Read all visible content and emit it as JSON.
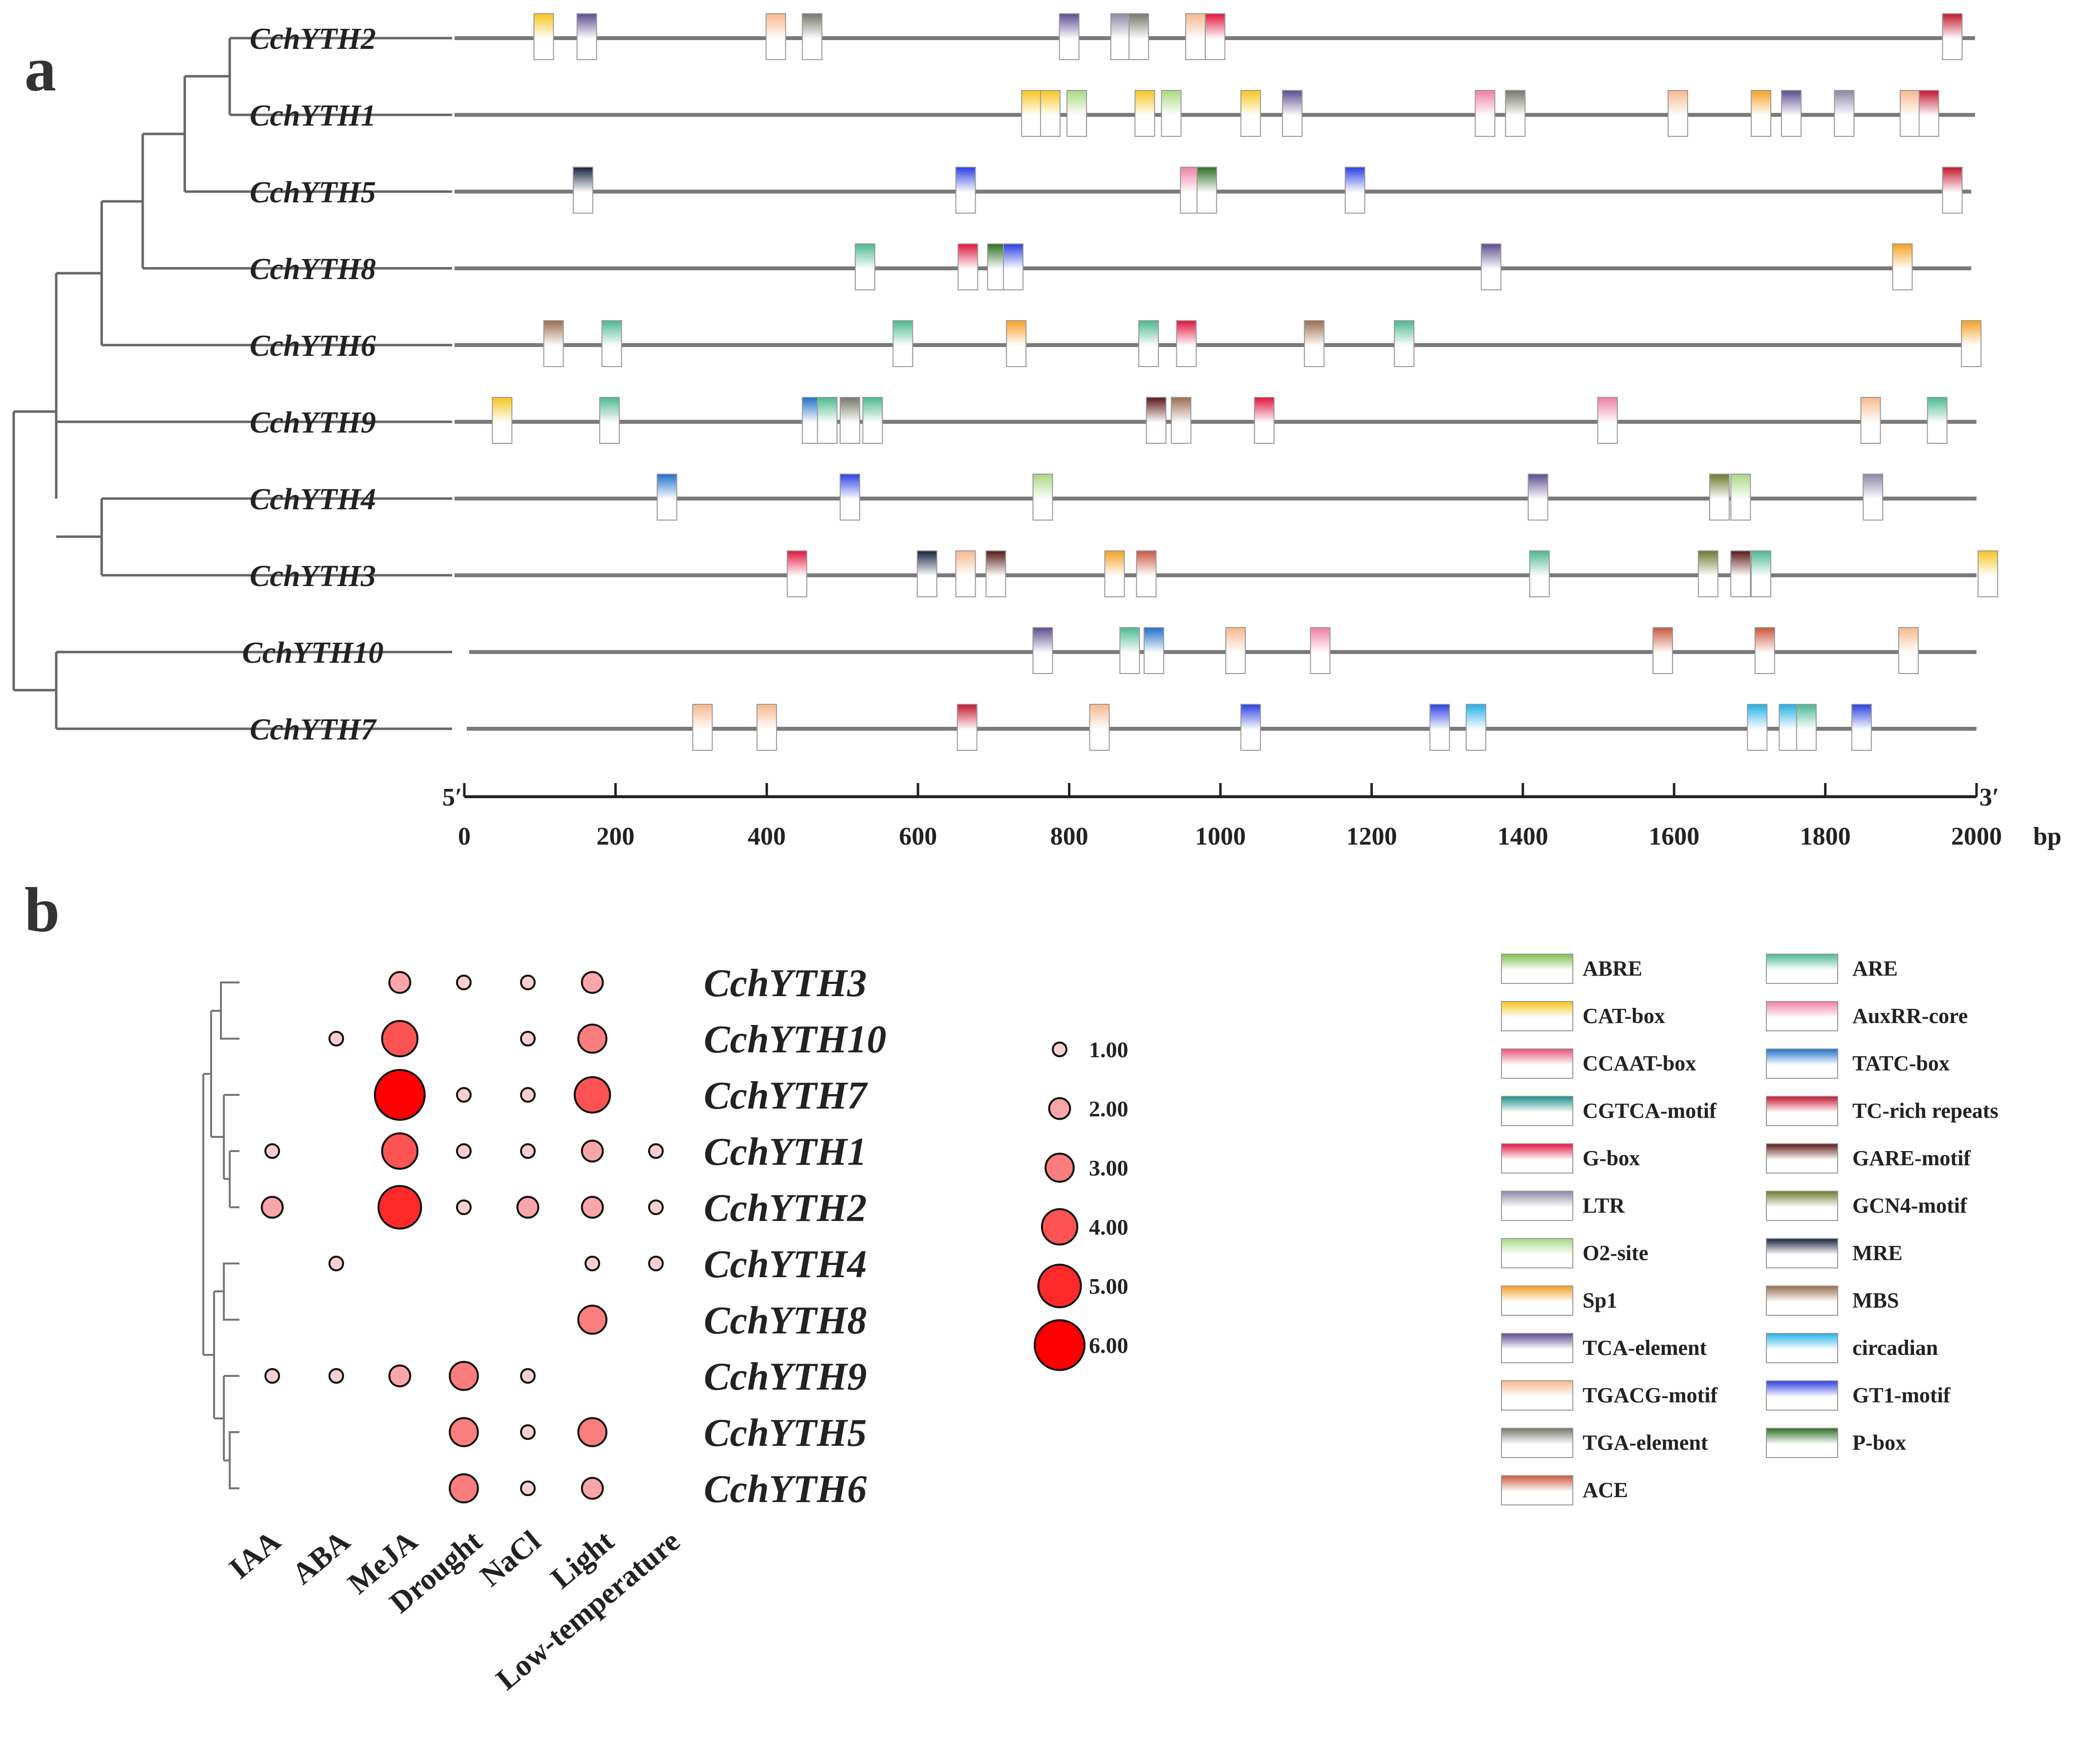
{
  "panels": {
    "a": "a",
    "b": "b"
  },
  "chart_data": [
    {
      "type": "promoter-element-map",
      "genes": [
        "CchYTH2",
        "CchYTH1",
        "CchYTH5",
        "CchYTH8",
        "CchYTH6",
        "CchYTH9",
        "CchYTH4",
        "CchYTH3",
        "CchYTH10",
        "CchYTH7"
      ],
      "axis": {
        "start_label": "5′",
        "end_label": "3′",
        "unit": "bp",
        "range": [
          0,
          2000
        ],
        "ticks": [
          0,
          200,
          400,
          600,
          800,
          1000,
          1200,
          1400,
          1600,
          1800,
          2000
        ]
      },
      "line_lengths": {
        "CchYTH2": 1998,
        "CchYTH1": 1998,
        "CchYTH5": 1993,
        "CchYTH8": 1993,
        "CchYTH6": 2000,
        "CchYTH9": 2000,
        "CchYTH4": 2000,
        "CchYTH3": 2000,
        "CchYTH10": 2000,
        "CchYTH7": 2000
      },
      "tree_order": [
        "CchYTH2",
        "CchYTH1",
        "CchYTH5",
        "CchYTH8",
        "CchYTH6",
        "CchYTH9",
        "CchYTH4",
        "CchYTH3",
        "CchYTH10",
        "CchYTH7"
      ],
      "elements": [
        {
          "gene": "CchYTH2",
          "pos": 105,
          "type": "CAT-box"
        },
        {
          "gene": "CchYTH2",
          "pos": 162,
          "type": "TCA-element"
        },
        {
          "gene": "CchYTH2",
          "pos": 412,
          "type": "TGACG-motif"
        },
        {
          "gene": "CchYTH2",
          "pos": 460,
          "type": "TGA-element"
        },
        {
          "gene": "CchYTH2",
          "pos": 800,
          "type": "TCA-element"
        },
        {
          "gene": "CchYTH2",
          "pos": 868,
          "type": "LTR"
        },
        {
          "gene": "CchYTH2",
          "pos": 892,
          "type": "TGA-element"
        },
        {
          "gene": "CchYTH2",
          "pos": 967,
          "type": "TGACG-motif"
        },
        {
          "gene": "CchYTH2",
          "pos": 993,
          "type": "G-box"
        },
        {
          "gene": "CchYTH2",
          "pos": 1968,
          "type": "TC-rich repeats"
        },
        {
          "gene": "CchYTH1",
          "pos": 750,
          "type": "CAT-box"
        },
        {
          "gene": "CchYTH1",
          "pos": 775,
          "type": "CAT-box"
        },
        {
          "gene": "CchYTH1",
          "pos": 810,
          "type": "O2-site"
        },
        {
          "gene": "CchYTH1",
          "pos": 900,
          "type": "CAT-box"
        },
        {
          "gene": "CchYTH1",
          "pos": 935,
          "type": "O2-site"
        },
        {
          "gene": "CchYTH1",
          "pos": 1040,
          "type": "CAT-box"
        },
        {
          "gene": "CchYTH1",
          "pos": 1095,
          "type": "TCA-element"
        },
        {
          "gene": "CchYTH1",
          "pos": 1350,
          "type": "AuxRR-core"
        },
        {
          "gene": "CchYTH1",
          "pos": 1390,
          "type": "TGA-element"
        },
        {
          "gene": "CchYTH1",
          "pos": 1605,
          "type": "TGACG-motif"
        },
        {
          "gene": "CchYTH1",
          "pos": 1715,
          "type": "Sp1"
        },
        {
          "gene": "CchYTH1",
          "pos": 1755,
          "type": "TCA-element"
        },
        {
          "gene": "CchYTH1",
          "pos": 1825,
          "type": "LTR"
        },
        {
          "gene": "CchYTH1",
          "pos": 1912,
          "type": "TGACG-motif"
        },
        {
          "gene": "CchYTH1",
          "pos": 1937,
          "type": "TC-rich repeats"
        },
        {
          "gene": "CchYTH5",
          "pos": 157,
          "type": "MRE"
        },
        {
          "gene": "CchYTH5",
          "pos": 663,
          "type": "GT1-motif"
        },
        {
          "gene": "CchYTH5",
          "pos": 960,
          "type": "AuxRR-core"
        },
        {
          "gene": "CchYTH5",
          "pos": 982,
          "type": "P-box"
        },
        {
          "gene": "CchYTH5",
          "pos": 1178,
          "type": "GT1-motif"
        },
        {
          "gene": "CchYTH5",
          "pos": 1968,
          "type": "TC-rich repeats"
        },
        {
          "gene": "CchYTH8",
          "pos": 530,
          "type": "ARE"
        },
        {
          "gene": "CchYTH8",
          "pos": 666,
          "type": "G-box"
        },
        {
          "gene": "CchYTH8",
          "pos": 705,
          "type": "P-box"
        },
        {
          "gene": "CchYTH8",
          "pos": 726,
          "type": "GT1-motif"
        },
        {
          "gene": "CchYTH8",
          "pos": 1358,
          "type": "TCA-element"
        },
        {
          "gene": "CchYTH8",
          "pos": 1902,
          "type": "Sp1"
        },
        {
          "gene": "CchYTH6",
          "pos": 118,
          "type": "MBS"
        },
        {
          "gene": "CchYTH6",
          "pos": 195,
          "type": "ARE"
        },
        {
          "gene": "CchYTH6",
          "pos": 580,
          "type": "ARE"
        },
        {
          "gene": "CchYTH6",
          "pos": 730,
          "type": "Sp1"
        },
        {
          "gene": "CchYTH6",
          "pos": 905,
          "type": "ARE"
        },
        {
          "gene": "CchYTH6",
          "pos": 955,
          "type": "G-box"
        },
        {
          "gene": "CchYTH6",
          "pos": 1124,
          "type": "MBS"
        },
        {
          "gene": "CchYTH6",
          "pos": 1243,
          "type": "ARE"
        },
        {
          "gene": "CchYTH6",
          "pos": 1993,
          "type": "Sp1"
        },
        {
          "gene": "CchYTH9",
          "pos": 50,
          "type": "CAT-box"
        },
        {
          "gene": "CchYTH9",
          "pos": 192,
          "type": "ARE"
        },
        {
          "gene": "CchYTH9",
          "pos": 460,
          "type": "TATC-box"
        },
        {
          "gene": "CchYTH9",
          "pos": 480,
          "type": "ARE"
        },
        {
          "gene": "CchYTH9",
          "pos": 510,
          "type": "TGA-element"
        },
        {
          "gene": "CchYTH9",
          "pos": 540,
          "type": "ARE"
        },
        {
          "gene": "CchYTH9",
          "pos": 915,
          "type": "GARE-motif"
        },
        {
          "gene": "CchYTH9",
          "pos": 948,
          "type": "MBS"
        },
        {
          "gene": "CchYTH9",
          "pos": 1058,
          "type": "G-box"
        },
        {
          "gene": "CchYTH9",
          "pos": 1512,
          "type": "AuxRR-core"
        },
        {
          "gene": "CchYTH9",
          "pos": 1860,
          "type": "TGACG-motif"
        },
        {
          "gene": "CchYTH9",
          "pos": 1948,
          "type": "ARE"
        },
        {
          "gene": "CchYTH4",
          "pos": 268,
          "type": "TATC-box"
        },
        {
          "gene": "CchYTH4",
          "pos": 510,
          "type": "GT1-motif"
        },
        {
          "gene": "CchYTH4",
          "pos": 765,
          "type": "O2-site"
        },
        {
          "gene": "CchYTH4",
          "pos": 1420,
          "type": "TCA-element"
        },
        {
          "gene": "CchYTH4",
          "pos": 1660,
          "type": "GCN4-motif"
        },
        {
          "gene": "CchYTH4",
          "pos": 1688,
          "type": "O2-site"
        },
        {
          "gene": "CchYTH4",
          "pos": 1863,
          "type": "LTR"
        },
        {
          "gene": "CchYTH3",
          "pos": 440,
          "type": "G-box"
        },
        {
          "gene": "CchYTH3",
          "pos": 612,
          "type": "MRE"
        },
        {
          "gene": "CchYTH3",
          "pos": 663,
          "type": "TGACG-motif"
        },
        {
          "gene": "CchYTH3",
          "pos": 703,
          "type": "GARE-motif"
        },
        {
          "gene": "CchYTH3",
          "pos": 860,
          "type": "Sp1"
        },
        {
          "gene": "CchYTH3",
          "pos": 902,
          "type": "ACE"
        },
        {
          "gene": "CchYTH3",
          "pos": 1422,
          "type": "ARE"
        },
        {
          "gene": "CchYTH3",
          "pos": 1645,
          "type": "GCN4-motif"
        },
        {
          "gene": "CchYTH3",
          "pos": 1688,
          "type": "GARE-motif"
        },
        {
          "gene": "CchYTH3",
          "pos": 1715,
          "type": "ARE"
        },
        {
          "gene": "CchYTH3",
          "pos": 2015,
          "type": "CAT-box"
        },
        {
          "gene": "CchYTH10",
          "pos": 765,
          "type": "TCA-element"
        },
        {
          "gene": "CchYTH10",
          "pos": 880,
          "type": "ARE"
        },
        {
          "gene": "CchYTH10",
          "pos": 912,
          "type": "TATC-box"
        },
        {
          "gene": "CchYTH10",
          "pos": 1020,
          "type": "TGACG-motif"
        },
        {
          "gene": "CchYTH10",
          "pos": 1132,
          "type": "AuxRR-core"
        },
        {
          "gene": "CchYTH10",
          "pos": 1585,
          "type": "ACE"
        },
        {
          "gene": "CchYTH10",
          "pos": 1720,
          "type": "ACE"
        },
        {
          "gene": "CchYTH10",
          "pos": 1910,
          "type": "TGACG-motif"
        },
        {
          "gene": "CchYTH7",
          "pos": 315,
          "type": "TGACG-motif"
        },
        {
          "gene": "CchYTH7",
          "pos": 400,
          "type": "TGACG-motif"
        },
        {
          "gene": "CchYTH7",
          "pos": 665,
          "type": "TC-rich repeats"
        },
        {
          "gene": "CchYTH7",
          "pos": 840,
          "type": "TGACG-motif"
        },
        {
          "gene": "CchYTH7",
          "pos": 1040,
          "type": "GT1-motif"
        },
        {
          "gene": "CchYTH7",
          "pos": 1290,
          "type": "GT1-motif"
        },
        {
          "gene": "CchYTH7",
          "pos": 1338,
          "type": "circadian"
        },
        {
          "gene": "CchYTH7",
          "pos": 1710,
          "type": "circadian"
        },
        {
          "gene": "CchYTH7",
          "pos": 1752,
          "type": "circadian"
        },
        {
          "gene": "CchYTH7",
          "pos": 1775,
          "type": "ARE"
        },
        {
          "gene": "CchYTH7",
          "pos": 1848,
          "type": "GT1-motif"
        }
      ],
      "legend": [
        {
          "name": "ABRE",
          "color": "#7cbf4a"
        },
        {
          "name": "ARE",
          "color": "#4cb88f"
        },
        {
          "name": "CAT-box",
          "color": "#f7c51e"
        },
        {
          "name": "AuxRR-core",
          "color": "#ee7fa4"
        },
        {
          "name": "CCAAT-box",
          "color": "#e8527a"
        },
        {
          "name": "TATC-box",
          "color": "#1f6fc9"
        },
        {
          "name": "CGTCA-motif",
          "color": "#1a8e88"
        },
        {
          "name": "TC-rich repeats",
          "color": "#c4152e"
        },
        {
          "name": "G-box",
          "color": "#e0143e"
        },
        {
          "name": "GARE-motif",
          "color": "#5a1515"
        },
        {
          "name": "LTR",
          "color": "#8b87a6"
        },
        {
          "name": "GCN4-motif",
          "color": "#6b7a2c"
        },
        {
          "name": "O2-site",
          "color": "#a8d884"
        },
        {
          "name": "MRE",
          "color": "#15213d"
        },
        {
          "name": "Sp1",
          "color": "#f5a022"
        },
        {
          "name": "MBS",
          "color": "#9a6d4e"
        },
        {
          "name": "TCA-element",
          "color": "#5c4c90"
        },
        {
          "name": "circadian",
          "color": "#22b1e6"
        },
        {
          "name": "TGACG-motif",
          "color": "#f7b88c"
        },
        {
          "name": "GT1-motif",
          "color": "#2b3fe3"
        },
        {
          "name": "TGA-element",
          "color": "#74776a"
        },
        {
          "name": "P-box",
          "color": "#2c6e24"
        },
        {
          "name": "ACE",
          "color": "#c9583c"
        }
      ]
    },
    {
      "type": "bubble",
      "genes": [
        "CchYTH3",
        "CchYTH10",
        "CchYTH7",
        "CchYTH1",
        "CchYTH2",
        "CchYTH4",
        "CchYTH8",
        "CchYTH9",
        "CchYTH5",
        "CchYTH6"
      ],
      "conditions": [
        "IAA",
        "ABA",
        "MeJA",
        "Drought",
        "NaCl",
        "Light",
        "Low-temperature"
      ],
      "values": [
        [
          null,
          null,
          2,
          1,
          1,
          2,
          null
        ],
        [
          null,
          1,
          4,
          null,
          1,
          3,
          null
        ],
        [
          null,
          null,
          6,
          1,
          1,
          4,
          null
        ],
        [
          1,
          null,
          4,
          1,
          1,
          2,
          1
        ],
        [
          2,
          null,
          5,
          1,
          2,
          2,
          1
        ],
        [
          null,
          1,
          null,
          null,
          null,
          1,
          1
        ],
        [
          null,
          null,
          null,
          null,
          null,
          3,
          null
        ],
        [
          1,
          1,
          2,
          3,
          1,
          null,
          null
        ],
        [
          null,
          null,
          null,
          3,
          1,
          3,
          null
        ],
        [
          null,
          null,
          null,
          3,
          1,
          2,
          null
        ]
      ],
      "size_legend": [
        "1.00",
        "2.00",
        "3.00",
        "4.00",
        "5.00",
        "6.00"
      ],
      "color_scale": {
        "low": "#f9d0d0",
        "high": "#ff0000"
      }
    }
  ]
}
